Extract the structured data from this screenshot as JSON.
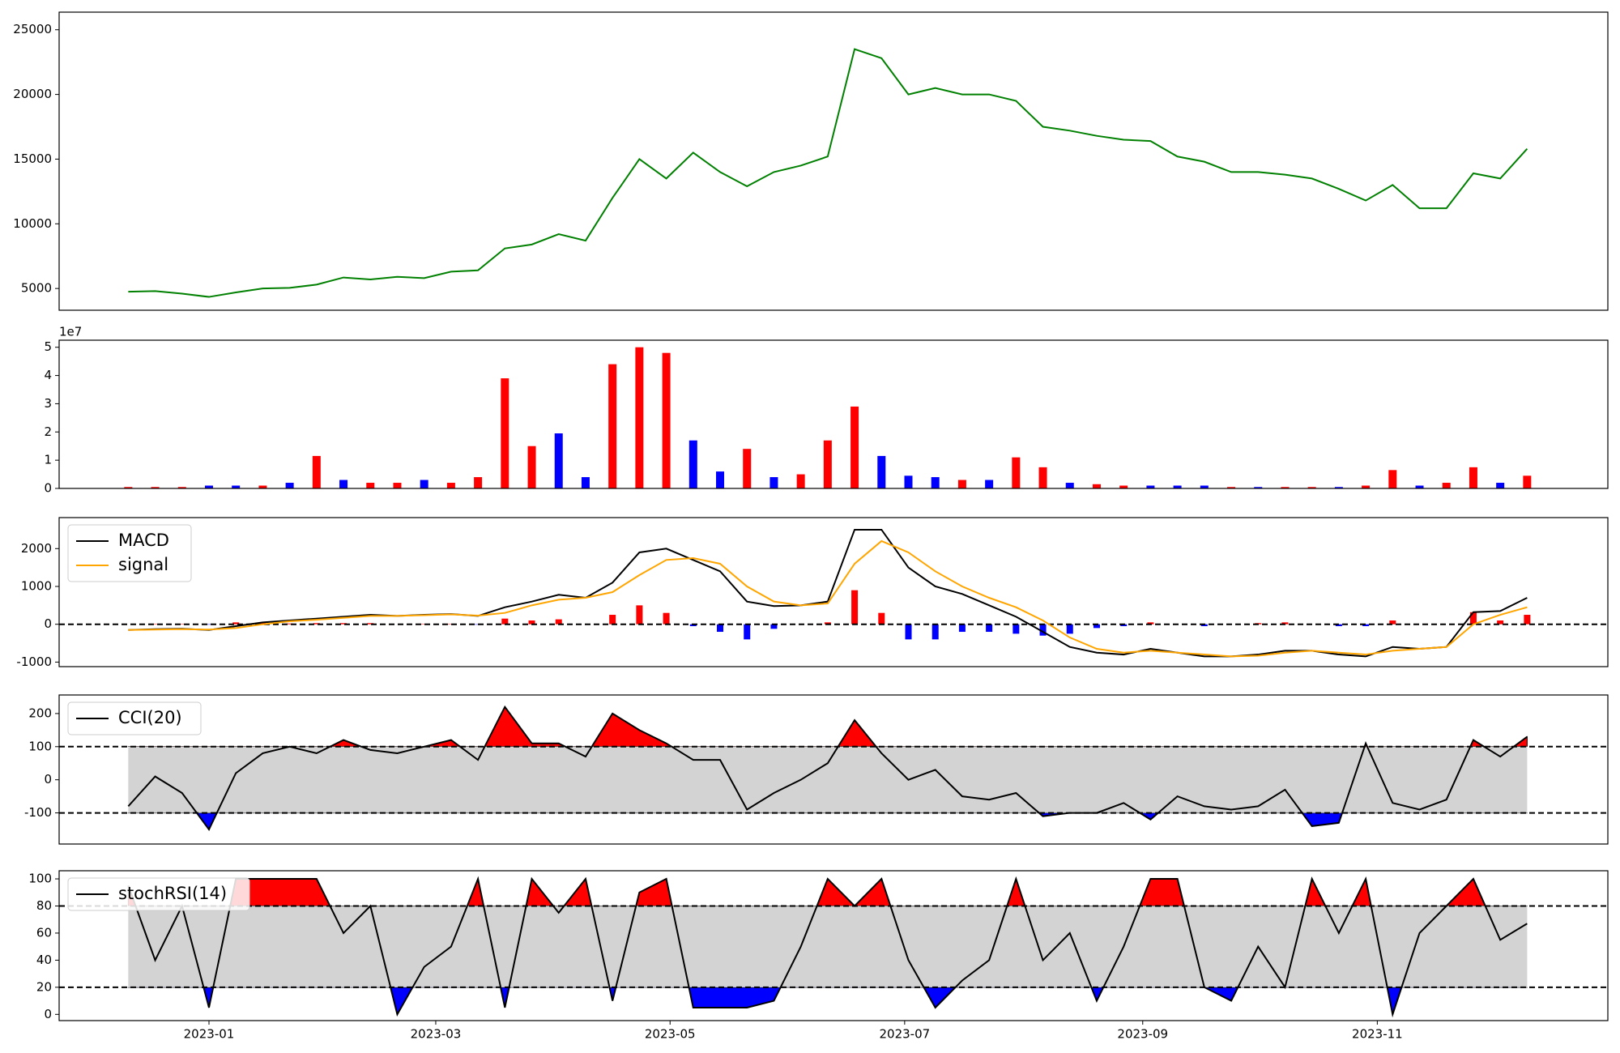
{
  "chart_data": [
    {
      "type": "line",
      "xlim": [
        -2.57,
        55.0
      ],
      "ylim": [
        3320,
        26360
      ],
      "yticks": [
        5000,
        10000,
        15000,
        20000,
        25000
      ],
      "series": [
        {
          "color": "#008000",
          "values": [
            4750,
            4800,
            4600,
            4350,
            4700,
            5000,
            5050,
            5300,
            5850,
            5700,
            5900,
            5800,
            6300,
            6400,
            8100,
            8400,
            9200,
            8700,
            12000,
            15000,
            13500,
            15500,
            14000,
            12900,
            14000,
            14500,
            15200,
            23500,
            22800,
            20000,
            20500,
            20000,
            20000,
            19500,
            17500,
            17200,
            16800,
            16500,
            16400,
            15200,
            14800,
            14000,
            14000,
            13800,
            13500,
            12700,
            11800,
            13000,
            11200,
            11200,
            13900,
            13500,
            15800
          ]
        }
      ]
    },
    {
      "type": "bar",
      "xlim": [
        -2.57,
        55.0
      ],
      "ylim": [
        0,
        5.25
      ],
      "yticks": [
        0,
        1,
        2,
        3,
        4,
        5
      ],
      "y_offset_label": "1e7",
      "values": [
        0.05,
        0.05,
        0.05,
        0.1,
        0.1,
        0.1,
        0.2,
        1.15,
        0.3,
        0.2,
        0.2,
        0.3,
        0.2,
        0.4,
        3.9,
        1.5,
        1.95,
        0.4,
        4.4,
        5.0,
        4.8,
        1.7,
        0.6,
        1.4,
        0.4,
        0.5,
        1.7,
        2.9,
        1.15,
        0.45,
        0.4,
        0.3,
        0.3,
        1.1,
        0.75,
        0.2,
        0.15,
        0.1,
        0.1,
        0.1,
        0.1,
        0.05,
        0.05,
        0.05,
        0.05,
        0.05,
        0.1,
        0.65,
        0.1,
        0.2,
        0.75,
        0.2,
        0.45
      ],
      "colors": [
        "#ff0000",
        "#ff0000",
        "#ff0000",
        "#0000ff",
        "#0000ff",
        "#ff0000",
        "#0000ff",
        "#ff0000",
        "#0000ff",
        "#ff0000",
        "#ff0000",
        "#0000ff",
        "#ff0000",
        "#ff0000",
        "#ff0000",
        "#ff0000",
        "#0000ff",
        "#0000ff",
        "#ff0000",
        "#ff0000",
        "#ff0000",
        "#0000ff",
        "#0000ff",
        "#ff0000",
        "#0000ff",
        "#ff0000",
        "#ff0000",
        "#ff0000",
        "#0000ff",
        "#0000ff",
        "#0000ff",
        "#ff0000",
        "#0000ff",
        "#ff0000",
        "#ff0000",
        "#0000ff",
        "#ff0000",
        "#ff0000",
        "#0000ff",
        "#0000ff",
        "#0000ff",
        "#ff0000",
        "#0000ff",
        "#ff0000",
        "#ff0000",
        "#0000ff",
        "#ff0000",
        "#ff0000",
        "#0000ff",
        "#ff0000",
        "#ff0000",
        "#0000ff",
        "#ff0000"
      ]
    },
    {
      "type": "line",
      "xlim": [
        -2.57,
        55.0
      ],
      "ylim": [
        -1120,
        2820
      ],
      "yticks": [
        -1000,
        0,
        1000,
        2000
      ],
      "hlines": [
        0
      ],
      "legend": "upper left",
      "series": [
        {
          "style": "bar",
          "pos_color": "#ff0000",
          "neg_color": "#0000ff",
          "values": [
            0,
            10,
            10,
            -10,
            50,
            50,
            20,
            30,
            30,
            30,
            0,
            10,
            10,
            -10,
            150,
            100,
            130,
            0,
            250,
            500,
            300,
            -50,
            -200,
            -400,
            -120,
            0,
            50,
            900,
            300,
            -400,
            -400,
            -200,
            -200,
            -250,
            -300,
            -250,
            -100,
            -50,
            50,
            0,
            -50,
            0,
            30,
            50,
            0,
            -50,
            -50,
            100,
            0,
            0,
            320,
            100,
            250
          ]
        },
        {
          "name": "MACD",
          "color": "#000000",
          "values": [
            -150,
            -130,
            -120,
            -150,
            -50,
            50,
            100,
            150,
            200,
            250,
            220,
            250,
            270,
            220,
            450,
            600,
            780,
            700,
            1100,
            1900,
            2000,
            1700,
            1400,
            600,
            480,
            500,
            600,
            2500,
            2500,
            1500,
            1000,
            800,
            500,
            200,
            -200,
            -600,
            -750,
            -800,
            -650,
            -750,
            -850,
            -850,
            -800,
            -700,
            -700,
            -800,
            -850,
            -600,
            -650,
            -600,
            320,
            350,
            700
          ]
        },
        {
          "name": "signal",
          "color": "#ffa500",
          "values": [
            -150,
            -140,
            -130,
            -140,
            -100,
            0,
            80,
            120,
            170,
            220,
            220,
            240,
            260,
            230,
            300,
            500,
            650,
            700,
            850,
            1300,
            1700,
            1750,
            1600,
            1000,
            600,
            500,
            550,
            1600,
            2200,
            1900,
            1400,
            1000,
            700,
            450,
            100,
            -350,
            -650,
            -750,
            -700,
            -750,
            -800,
            -850,
            -830,
            -750,
            -700,
            -750,
            -800,
            -700,
            -650,
            -600,
            0,
            250,
            450
          ]
        }
      ]
    },
    {
      "type": "line",
      "xlim": [
        -2.57,
        55.0
      ],
      "ylim": [
        -194,
        256
      ],
      "yticks": [
        -100,
        0,
        100,
        200
      ],
      "hlines": [
        100,
        -100
      ],
      "legend": "upper left",
      "band_color": "#d3d3d3",
      "fill_above": "#ff0000",
      "fill_below": "#0000ff",
      "series": [
        {
          "name": "CCI(20)",
          "color": "#000000",
          "values": [
            -80,
            10,
            -40,
            -150,
            20,
            80,
            100,
            80,
            120,
            90,
            80,
            100,
            120,
            60,
            220,
            110,
            110,
            70,
            200,
            150,
            110,
            60,
            60,
            -90,
            -40,
            0,
            50,
            180,
            80,
            0,
            30,
            -50,
            -60,
            -40,
            -110,
            -100,
            -100,
            -70,
            -120,
            -50,
            -80,
            -90,
            -80,
            -30,
            -140,
            -130,
            110,
            -70,
            -90,
            -60,
            120,
            70,
            130
          ]
        }
      ]
    },
    {
      "type": "line",
      "xlim": [
        -2.57,
        55.0
      ],
      "ylim": [
        -4.6,
        106
      ],
      "yticks": [
        0,
        20,
        40,
        60,
        80,
        100
      ],
      "hlines": [
        80,
        20
      ],
      "legend": "upper left",
      "band_color": "#d3d3d3",
      "fill_above": "#ff0000",
      "fill_below": "#0000ff",
      "xticks": [
        {
          "value": 3.0,
          "label": "2023-01"
        },
        {
          "value": 11.43,
          "label": "2023-03"
        },
        {
          "value": 20.14,
          "label": "2023-05"
        },
        {
          "value": 28.86,
          "label": "2023-07"
        },
        {
          "value": 37.71,
          "label": "2023-09"
        },
        {
          "value": 46.43,
          "label": "2023-11"
        }
      ],
      "series": [
        {
          "name": "stochRSI(14)",
          "color": "#000000",
          "values": [
            95,
            40,
            80,
            5,
            100,
            100,
            100,
            100,
            60,
            80,
            0,
            35,
            50,
            100,
            5,
            100,
            75,
            100,
            10,
            90,
            100,
            5,
            5,
            5,
            10,
            50,
            100,
            80,
            100,
            40,
            5,
            25,
            40,
            100,
            40,
            60,
            10,
            50,
            100,
            100,
            20,
            10,
            50,
            20,
            100,
            60,
            100,
            0,
            60,
            80,
            100,
            55,
            67
          ]
        }
      ]
    }
  ]
}
